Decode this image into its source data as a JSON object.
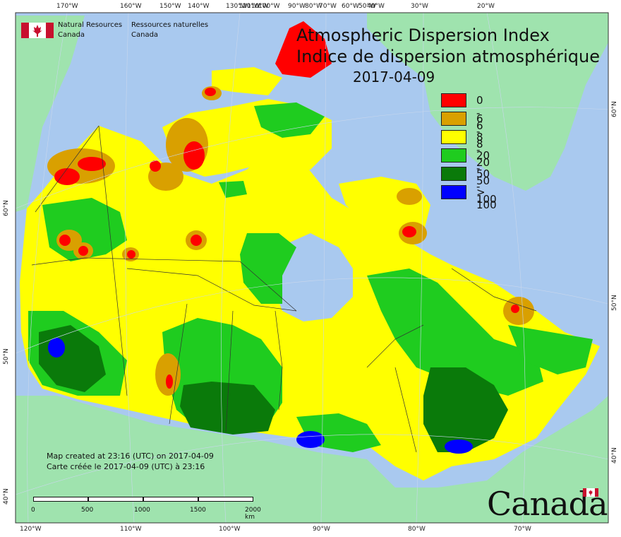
{
  "title_en": "Atmospheric Dispersion Index",
  "title_fr": "Indice de dispersion atmosphérique",
  "date": "2017-04-09",
  "agency": {
    "name_en_line1": "Natural Resources",
    "name_en_line2": "Canada",
    "name_fr_line1": "Ressources naturelles",
    "name_fr_line2": "Canada"
  },
  "legend": [
    {
      "label": "0 - 6",
      "color": "#ff0000"
    },
    {
      "label": "6 - 8",
      "color": "#d9a000"
    },
    {
      "label": "8 - 20",
      "color": "#ffff00"
    },
    {
      "label": "20 - 50",
      "color": "#1fcc1f"
    },
    {
      "label": "50 - 100",
      "color": "#0a7a0a"
    },
    {
      "label": "> 100",
      "color": "#0000ff"
    }
  ],
  "credits": {
    "line_en": "Map created at 23:16 (UTC) on 2017-04-09",
    "line_fr": "Carte créée le 2017-04-09 (UTC) à 23:16"
  },
  "scale": {
    "ticks": [
      "0",
      "500",
      "1000",
      "1500",
      "2000  km"
    ]
  },
  "wordmark": "Canada",
  "graticule": {
    "top_lon": [
      "170°W",
      "160°W",
      "150°W",
      "140°W",
      "130°W",
      "120°W",
      "110°W",
      "100°W",
      "90°W",
      "80°W",
      "70°W",
      "60°W",
      "50°W",
      "40°W",
      "30°W",
      "20°W"
    ],
    "bottom_lon": [
      "120°W",
      "110°W",
      "100°W",
      "90°W",
      "80°W",
      "70°W"
    ],
    "left_lat": [
      "60°N",
      "50°N",
      "40°N"
    ],
    "right_lat": [
      "60°N",
      "50°N",
      "40°N"
    ]
  },
  "colors": {
    "ocean": "#a9c9ef",
    "land_outside": "#9fe3ae",
    "graticule": "#c9d7ec"
  }
}
